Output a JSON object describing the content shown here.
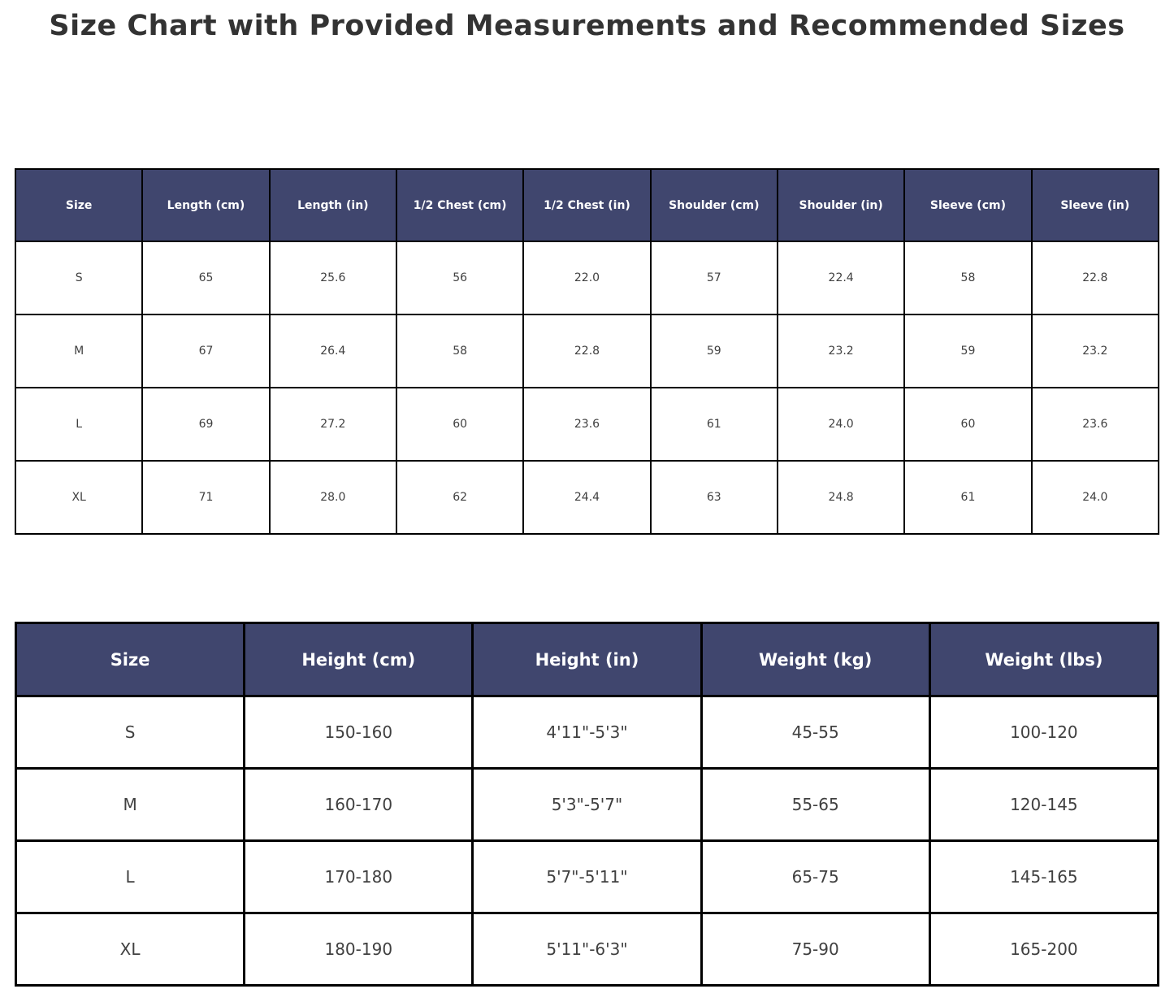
{
  "page": {
    "title": "Size Chart with Provided Measurements and Recommended Sizes"
  },
  "colors": {
    "header_bg": "#40466e",
    "header_text": "#ffffff",
    "cell_text": "#404040",
    "border": "#000000",
    "title_text": "#333333"
  },
  "measurements_table": {
    "headers": [
      "Size",
      "Length (cm)",
      "Length (in)",
      "1/2 Chest (cm)",
      "1/2 Chest (in)",
      "Shoulder (cm)",
      "Shoulder (in)",
      "Sleeve (cm)",
      "Sleeve (in)"
    ],
    "rows": [
      [
        "S",
        "65",
        "25.6",
        "56",
        "22.0",
        "57",
        "22.4",
        "58",
        "22.8"
      ],
      [
        "M",
        "67",
        "26.4",
        "58",
        "22.8",
        "59",
        "23.2",
        "59",
        "23.2"
      ],
      [
        "L",
        "69",
        "27.2",
        "60",
        "23.6",
        "61",
        "24.0",
        "60",
        "23.6"
      ],
      [
        "XL",
        "71",
        "28.0",
        "62",
        "24.4",
        "63",
        "24.8",
        "61",
        "24.0"
      ]
    ]
  },
  "recommended_table": {
    "headers": [
      "Size",
      "Height (cm)",
      "Height (in)",
      "Weight (kg)",
      "Weight (lbs)"
    ],
    "rows": [
      [
        "S",
        "150-160",
        "4'11\"-5'3\"",
        "45-55",
        "100-120"
      ],
      [
        "M",
        "160-170",
        "5'3\"-5'7\"",
        "55-65",
        "120-145"
      ],
      [
        "L",
        "170-180",
        "5'7\"-5'11\"",
        "65-75",
        "145-165"
      ],
      [
        "XL",
        "180-190",
        "5'11\"-6'3\"",
        "75-90",
        "165-200"
      ]
    ]
  },
  "chart_data": [
    {
      "type": "table",
      "title": "Provided garment measurements",
      "columns": [
        "Size",
        "Length (cm)",
        "Length (in)",
        "1/2 Chest (cm)",
        "1/2 Chest (in)",
        "Shoulder (cm)",
        "Shoulder (in)",
        "Sleeve (cm)",
        "Sleeve (in)"
      ],
      "rows": [
        [
          "S",
          65,
          25.6,
          56,
          22.0,
          57,
          22.4,
          58,
          22.8
        ],
        [
          "M",
          67,
          26.4,
          58,
          22.8,
          59,
          23.2,
          59,
          23.2
        ],
        [
          "L",
          69,
          27.2,
          60,
          23.6,
          61,
          24.0,
          60,
          23.6
        ],
        [
          "XL",
          71,
          28.0,
          62,
          24.4,
          63,
          24.8,
          61,
          24.0
        ]
      ]
    },
    {
      "type": "table",
      "title": "Recommended sizes by body height/weight",
      "columns": [
        "Size",
        "Height (cm)",
        "Height (in)",
        "Weight (kg)",
        "Weight (lbs)"
      ],
      "rows": [
        [
          "S",
          "150-160",
          "4'11\"-5'3\"",
          "45-55",
          "100-120"
        ],
        [
          "M",
          "160-170",
          "5'3\"-5'7\"",
          "55-65",
          "120-145"
        ],
        [
          "L",
          "170-180",
          "5'7\"-5'11\"",
          "65-75",
          "145-165"
        ],
        [
          "XL",
          "180-190",
          "5'11\"-6'3\"",
          "75-90",
          "165-200"
        ]
      ]
    }
  ]
}
